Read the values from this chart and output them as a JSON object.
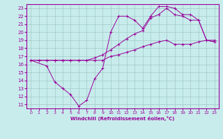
{
  "xlabel": "Windchill (Refroidissement éolien,°C)",
  "bg_color": "#c8ecec",
  "grid_color": "#a0c8c8",
  "line_color": "#990099",
  "xlim": [
    -0.5,
    23.5
  ],
  "ylim": [
    10.5,
    23.5
  ],
  "xticks": [
    0,
    1,
    2,
    3,
    4,
    5,
    6,
    7,
    8,
    9,
    10,
    11,
    12,
    13,
    14,
    15,
    16,
    17,
    18,
    19,
    20,
    21,
    22,
    23
  ],
  "yticks": [
    11,
    12,
    13,
    14,
    15,
    16,
    17,
    18,
    19,
    20,
    21,
    22,
    23
  ],
  "line1_x": [
    0,
    1,
    2,
    3,
    4,
    5,
    6,
    7,
    8,
    9,
    10,
    11,
    12,
    13,
    14,
    15,
    16,
    17,
    18,
    19,
    20,
    21,
    22,
    23
  ],
  "line1_y": [
    16.5,
    16.5,
    16.5,
    16.5,
    16.5,
    16.5,
    16.5,
    16.5,
    16.5,
    16.5,
    17.0,
    17.2,
    17.5,
    17.8,
    18.2,
    18.5,
    18.8,
    19.0,
    18.5,
    18.5,
    18.5,
    18.8,
    19.0,
    19.0
  ],
  "line2_x": [
    0,
    1,
    2,
    3,
    4,
    5,
    6,
    7,
    8,
    9,
    10,
    11,
    12,
    13,
    14,
    15,
    16,
    17,
    18,
    19,
    20,
    21,
    22,
    23
  ],
  "line2_y": [
    16.5,
    16.5,
    16.5,
    16.5,
    16.5,
    16.5,
    16.5,
    16.5,
    16.8,
    17.2,
    17.8,
    18.5,
    19.2,
    19.8,
    20.2,
    21.8,
    22.2,
    23.0,
    22.2,
    22.0,
    21.5,
    21.5,
    19.0,
    18.8
  ],
  "line3_x": [
    0,
    2,
    3,
    4,
    5,
    6,
    7,
    8,
    9,
    10,
    11,
    12,
    13,
    14,
    15,
    16,
    17,
    18,
    19,
    20,
    21,
    22,
    23
  ],
  "line3_y": [
    16.5,
    15.8,
    13.8,
    13.0,
    12.2,
    10.8,
    11.5,
    14.2,
    15.5,
    20.0,
    22.0,
    22.0,
    21.5,
    20.5,
    22.0,
    23.2,
    23.2,
    23.0,
    22.2,
    22.2,
    21.5,
    19.0,
    18.8
  ]
}
